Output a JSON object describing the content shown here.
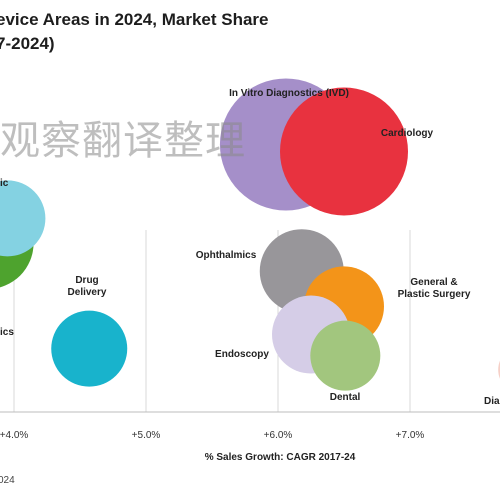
{
  "title_lines": [
    "evice Areas in 2024, Market Share",
    "7-2024)"
  ],
  "watermark": "观察翻译整理",
  "source_fragment": "024",
  "chart_data": {
    "type": "scatter",
    "xlabel": "% Sales Growth: CAGR 2017-24",
    "xlim": [
      3.97,
      7.85
    ],
    "ylim": [
      0,
      1
    ],
    "x_ticks": [
      4.0,
      5.0,
      6.0,
      7.0
    ],
    "x_tick_labels": [
      "+4.0%",
      "+5.0%",
      "+6.0%",
      "+7.0%"
    ],
    "grid": "vertical",
    "points": [
      {
        "label": "In Vitro Diagnostics (IVD)",
        "x": 6.06,
        "y": 0.76,
        "size": 66,
        "color": "#a58fc9"
      },
      {
        "label": "Cardiology",
        "x": 6.5,
        "y": 0.74,
        "size": 64,
        "color": "#e8323f"
      },
      {
        "label": "Ophthalmics",
        "x": 6.18,
        "y": 0.4,
        "size": 42,
        "color": "#98969a"
      },
      {
        "label": "General & Plastic Surgery",
        "x": 6.5,
        "y": 0.3,
        "size": 40,
        "color": "#f39419"
      },
      {
        "label": "Endoscopy",
        "x": 6.25,
        "y": 0.22,
        "size": 39,
        "color": "#d5cde7"
      },
      {
        "label": "Dental",
        "x": 6.51,
        "y": 0.16,
        "size": 35,
        "color": "#a2c67e"
      },
      {
        "label": "Drug Delivery",
        "x": 4.57,
        "y": 0.18,
        "size": 38,
        "color": "#18b3cc"
      },
      {
        "label": "ic",
        "x": 3.95,
        "y": 0.55,
        "size": 38,
        "color": "#84d2e2"
      },
      {
        "label": "ics",
        "x": 3.8,
        "y": 0.48,
        "size": 46,
        "color": "#4ea32e"
      },
      {
        "label": "Dia",
        "x": 7.85,
        "y": 0.12,
        "size": 24,
        "color": "#f6d0c7"
      }
    ]
  }
}
